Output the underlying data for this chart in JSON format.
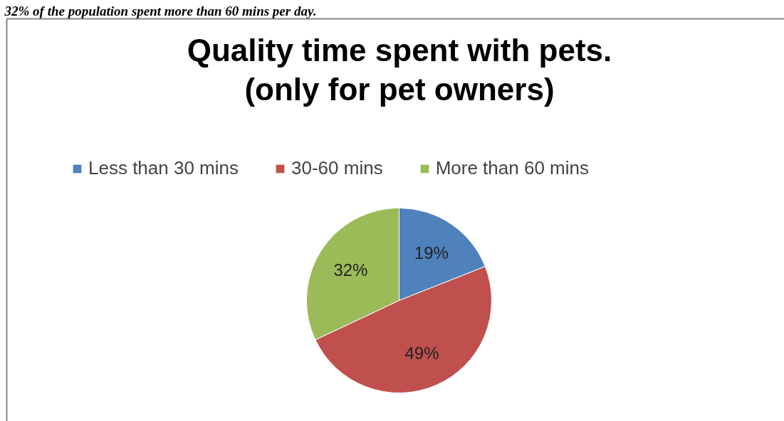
{
  "chart_data": {
    "type": "pie",
    "title": "Quality time spent with pets.\n(only for pet owners)",
    "categories": [
      "Less than 30 mins",
      "30-60 mins",
      "More than 60 mins"
    ],
    "values": [
      19,
      49,
      32
    ],
    "colors": [
      "#4f81bd",
      "#c0504d",
      "#9bbb59"
    ],
    "value_labels": [
      "19%",
      "49%",
      "32%"
    ],
    "legend": "top",
    "annotations": [
      "32% of the population spent more than 60 mins per day."
    ]
  }
}
